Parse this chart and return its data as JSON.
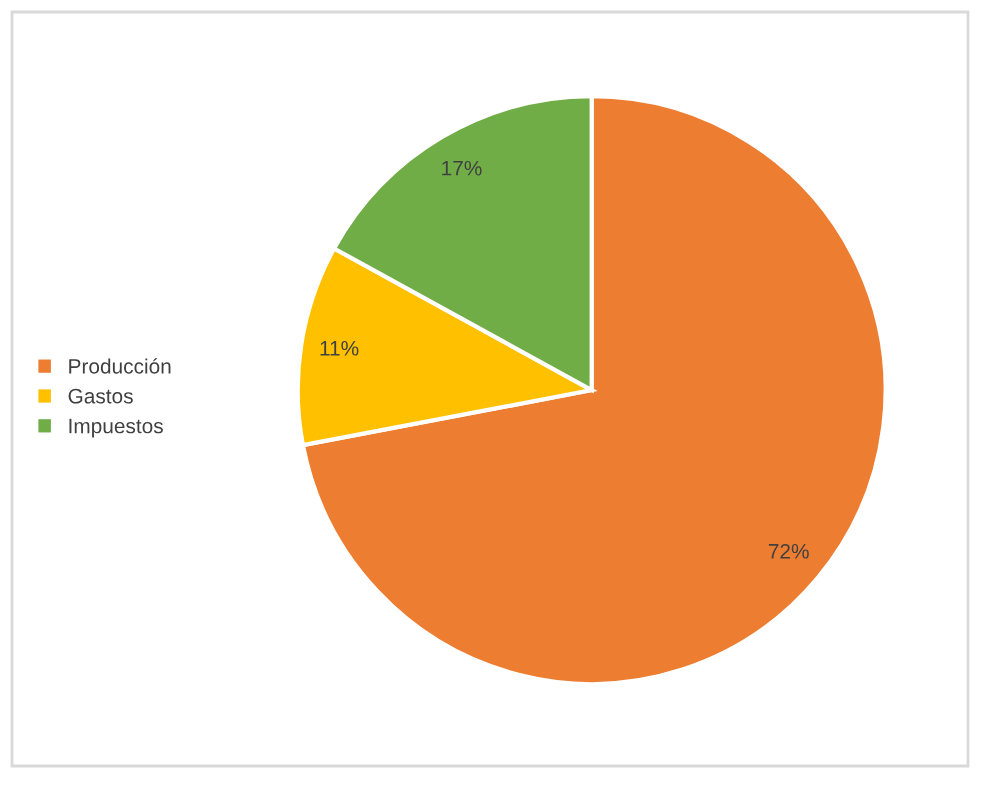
{
  "chart_data": {
    "type": "pie",
    "categories": [
      "Producción",
      "Gastos",
      "Impuestos"
    ],
    "values": [
      72,
      11,
      17
    ],
    "colors": [
      "#ed7d31",
      "#ffc000",
      "#70ad47"
    ],
    "value_labels": [
      "72%",
      "11%",
      "17%"
    ],
    "legend": "left"
  }
}
